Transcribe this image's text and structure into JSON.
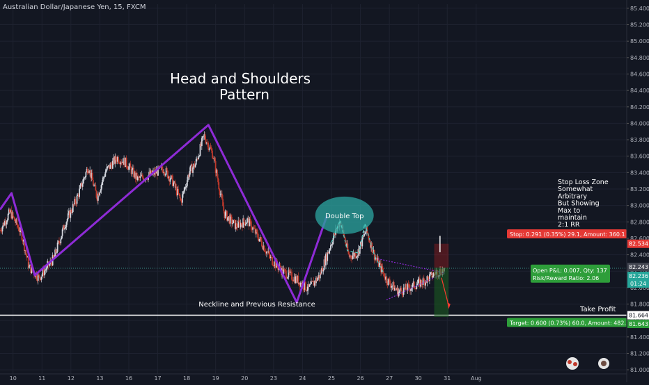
{
  "header": {
    "symbol_title": "Australian Dollar/Japanese Yen, 15, FXCM"
  },
  "colors": {
    "background": "#131722",
    "grid": "#1e2230",
    "pattern": "#8e2bd6",
    "candle_up": "#d1d4dc",
    "candle_down": "#c0392b",
    "stop_label": "#e53935",
    "target_label": "#2e9e3a",
    "current_price": "#26a69a",
    "double_top_fill": "#2a9d9a"
  },
  "chart_data": {
    "type": "candlestick",
    "ylim": [
      80.95,
      85.45
    ],
    "xlim": [
      9.55,
      31.2
    ],
    "y_ticks": [
      "85.400",
      "85.200",
      "85.000",
      "84.800",
      "84.600",
      "84.400",
      "84.200",
      "84.000",
      "83.800",
      "83.600",
      "83.400",
      "83.200",
      "83.000",
      "82.800",
      "82.600",
      "82.400",
      "82.200",
      "82.000",
      "81.800",
      "81.600",
      "81.400",
      "81.200",
      "81.000"
    ],
    "x_ticks": [
      {
        "label": "10",
        "x": 10
      },
      {
        "label": "11",
        "x": 11
      },
      {
        "label": "12",
        "x": 12
      },
      {
        "label": "13",
        "x": 13
      },
      {
        "label": "16",
        "x": 14
      },
      {
        "label": "17",
        "x": 15
      },
      {
        "label": "18",
        "x": 16
      },
      {
        "label": "19",
        "x": 17
      },
      {
        "label": "20",
        "x": 18
      },
      {
        "label": "23",
        "x": 19
      },
      {
        "label": "24",
        "x": 20
      },
      {
        "label": "25",
        "x": 21
      },
      {
        "label": "26",
        "x": 22
      },
      {
        "label": "27",
        "x": 23
      },
      {
        "label": "30",
        "x": 24
      },
      {
        "label": "31",
        "x": 25
      },
      {
        "label": "Aug",
        "x": 26
      }
    ],
    "price_path": [
      [
        9.55,
        82.7
      ],
      [
        9.9,
        82.92
      ],
      [
        10.3,
        82.65
      ],
      [
        10.55,
        82.25
      ],
      [
        10.9,
        82.12
      ],
      [
        11.4,
        82.35
      ],
      [
        11.8,
        82.78
      ],
      [
        12.2,
        83.08
      ],
      [
        12.6,
        83.48
      ],
      [
        12.9,
        83.1
      ],
      [
        13.2,
        83.42
      ],
      [
        13.6,
        83.58
      ],
      [
        13.9,
        83.52
      ],
      [
        14.3,
        83.32
      ],
      [
        14.8,
        83.38
      ],
      [
        15.2,
        83.45
      ],
      [
        15.5,
        83.3
      ],
      [
        15.8,
        83.05
      ],
      [
        16.1,
        83.42
      ],
      [
        16.3,
        83.5
      ],
      [
        16.6,
        83.85
      ],
      [
        16.9,
        83.62
      ],
      [
        17.3,
        82.9
      ],
      [
        17.7,
        82.75
      ],
      [
        18.1,
        82.82
      ],
      [
        18.5,
        82.6
      ],
      [
        18.9,
        82.35
      ],
      [
        19.3,
        82.2
      ],
      [
        19.8,
        82.1
      ],
      [
        20.2,
        81.98
      ],
      [
        20.6,
        82.15
      ],
      [
        21.0,
        82.55
      ],
      [
        21.3,
        82.82
      ],
      [
        21.6,
        82.38
      ],
      [
        21.9,
        82.42
      ],
      [
        22.2,
        82.7
      ],
      [
        22.5,
        82.38
      ],
      [
        22.9,
        82.1
      ],
      [
        23.3,
        81.95
      ],
      [
        23.7,
        82.0
      ],
      [
        24.2,
        82.08
      ],
      [
        24.6,
        82.18
      ],
      [
        24.9,
        82.22
      ]
    ],
    "series": [
      {
        "name": "current_price",
        "value": 82.236,
        "label": "82.236"
      },
      {
        "name": "neckline",
        "value": 81.664,
        "label": "81.664"
      },
      {
        "name": "stop",
        "value": 82.534,
        "label": "82.534"
      },
      {
        "name": "target",
        "value": 81.643,
        "label": "81.643"
      },
      {
        "name": "entry",
        "value": 82.243,
        "label": "82.243"
      }
    ],
    "countdown_label": "01:24",
    "head_and_shoulders_path": [
      [
        9.55,
        82.95
      ],
      [
        9.95,
        83.15
      ],
      [
        10.75,
        82.15
      ],
      [
        16.75,
        83.98
      ],
      [
        19.8,
        81.82
      ],
      [
        20.85,
        82.88
      ]
    ],
    "annotations": {
      "hs_title_line1": "Head and Shoulders",
      "hs_title_line2": "Pattern",
      "neckline_label": "Neckline and Previous Resistance",
      "double_top": "Double Top",
      "stop_note": [
        "Stop Loss Zone",
        "Somewhat",
        "Arbitrary",
        "But Showing",
        "Max to",
        "maintain",
        "2:1 RR"
      ],
      "take_profit": "Take Profit"
    },
    "position_tool": {
      "stop_text": "Stop: 0.291 (0.35%) 29.1, Amount: 360.1",
      "open_text": "Open P&L: 0.007, Qty: 137",
      "rr_text": "Risk/Reward Ratio: 2.06",
      "target_text": "Target: 0.600 (0.73%) 60.0, Amount: 482."
    }
  }
}
